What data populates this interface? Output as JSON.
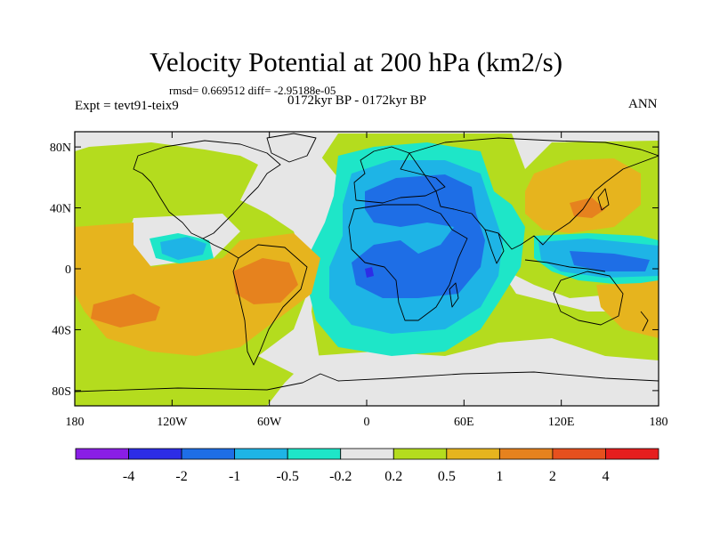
{
  "title": "Velocity Potential at 200 hPa (km2/s)",
  "stats_line": "rmsd= 0.669512 diff= -2.95188e-05",
  "experiment": "Expt = tevt91-teix9",
  "period": "0172kyr BP - 0172kyr BP",
  "season": "ANN",
  "lat_labels": [
    {
      "lat": 80,
      "label": "80N"
    },
    {
      "lat": 40,
      "label": "40N"
    },
    {
      "lat": 0,
      "label": "0"
    },
    {
      "lat": -40,
      "label": "40S"
    },
    {
      "lat": -80,
      "label": "80S"
    }
  ],
  "lon_labels": [
    {
      "lon": -180,
      "label": "180"
    },
    {
      "lon": -120,
      "label": "120W"
    },
    {
      "lon": -60,
      "label": "60W"
    },
    {
      "lon": 0,
      "label": "0"
    },
    {
      "lon": 60,
      "label": "60E"
    },
    {
      "lon": 120,
      "label": "120E"
    },
    {
      "lon": 180,
      "label": "180"
    }
  ],
  "colorbar": {
    "colors": [
      "#8a1ee6",
      "#2d2de6",
      "#1e6ee6",
      "#1eb4e6",
      "#1ee6c8",
      "#e6e6e6",
      "#b4dc1e",
      "#e6b41e",
      "#e6821e",
      "#e6501e",
      "#e61e1e"
    ],
    "labels": [
      "-4",
      "-2",
      "-1",
      "-0.5",
      "-0.2",
      "0.2",
      "0.5",
      "1",
      "2",
      "4"
    ]
  },
  "field_colors": {
    "background": "#b4dc1e",
    "neutral": "#e6e6e6",
    "pos1": "#e6b41e",
    "pos2": "#e6821e",
    "neg05": "#1ee6c8",
    "neg1": "#1eb4e6",
    "neg2": "#1e6ee6",
    "neg4": "#2d2de6"
  }
}
